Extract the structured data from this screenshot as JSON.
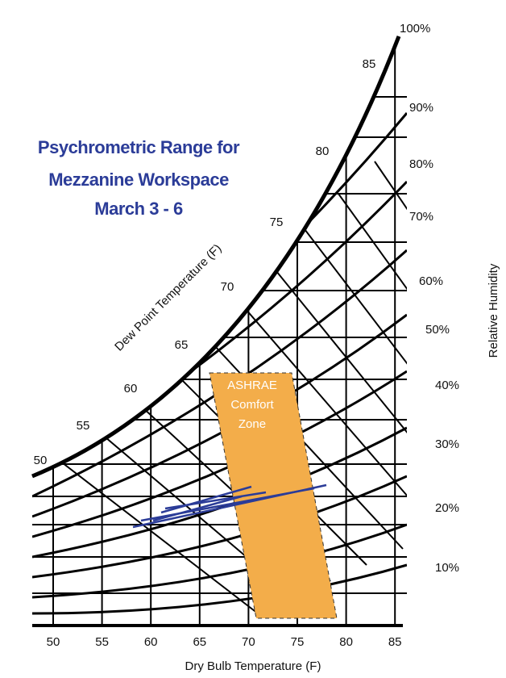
{
  "title": [
    "Psychrometric Range for",
    "Mezzanine Workspace",
    "March 3 - 6"
  ],
  "x_axis": {
    "label": "Dry Bulb Temperature (F)",
    "ticks": [
      "50",
      "55",
      "60",
      "65",
      "70",
      "75",
      "80",
      "85"
    ]
  },
  "dew_point": {
    "label": "Dew Point Temperature (F)",
    "ticks": [
      "50",
      "55",
      "60",
      "65",
      "70",
      "75",
      "80",
      "85"
    ]
  },
  "relative_humidity": {
    "label": "Relative Humidity",
    "ticks": [
      "10%",
      "20%",
      "30%",
      "40%",
      "50%",
      "60%",
      "70%",
      "80%",
      "90%",
      "100%"
    ]
  },
  "comfort_zone": [
    "ASHRAE",
    "Comfort",
    "Zone"
  ]
}
